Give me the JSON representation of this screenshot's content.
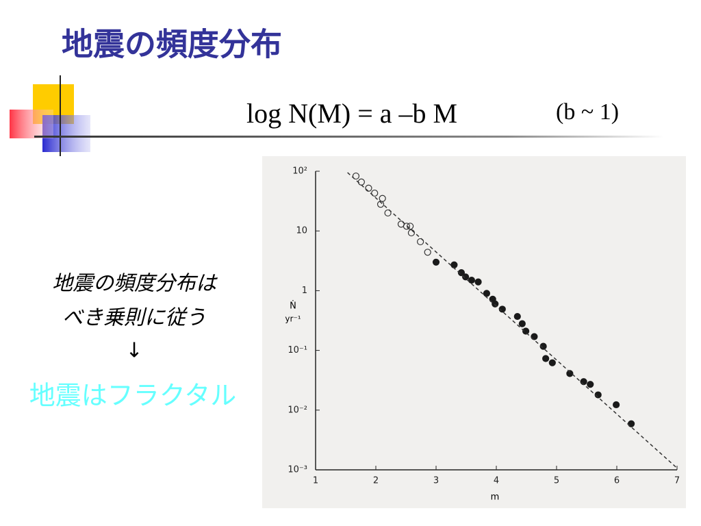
{
  "header": {
    "title": "地震の頻度分布",
    "formula": "log N(M) = a –b M",
    "note": "(b ~ 1)"
  },
  "body": {
    "lines": [
      "地震の頻度分布は",
      "べき乗則に従う",
      "↓"
    ],
    "conclusion": "地震はフラクタル"
  },
  "chart_data": {
    "type": "scatter",
    "log_y": true,
    "xlabel": "m",
    "ylabel": "Ṅ",
    "ylabel_unit": "yr⁻¹",
    "xlim": [
      1,
      7
    ],
    "xticks": [
      1,
      2,
      3,
      4,
      5,
      6,
      7
    ],
    "ylim": [
      0.001,
      100
    ],
    "yticks": [
      {
        "value": 100,
        "label": "10²"
      },
      10,
      1,
      {
        "value": 0.1,
        "label": "10⁻¹"
      },
      {
        "value": 0.01,
        "label": "10⁻²"
      },
      {
        "value": 0.001,
        "label": "10⁻³"
      }
    ],
    "series": [
      {
        "marker": "open",
        "color": "#333333",
        "x": [
          1.67,
          1.76,
          1.88,
          1.98,
          2.11,
          2.08,
          2.2,
          2.42,
          2.51,
          2.57,
          2.59,
          2.74,
          2.86
        ],
        "values": [
          83,
          66,
          52,
          43,
          35,
          28,
          20,
          13,
          12,
          12,
          9.3,
          6.6,
          4.4
        ]
      },
      {
        "marker": "filled",
        "color": "#1a1a1a",
        "x": [
          3.0,
          3.3,
          3.42,
          3.49,
          3.59,
          3.7,
          3.84,
          3.94,
          3.98,
          4.1,
          4.35,
          4.43,
          4.49,
          4.63,
          4.78,
          4.82,
          4.93,
          5.22,
          5.45,
          5.56,
          5.69,
          5.99,
          6.24
        ],
        "values": [
          3.0,
          2.7,
          2.0,
          1.7,
          1.5,
          1.4,
          0.9,
          0.72,
          0.6,
          0.49,
          0.37,
          0.28,
          0.21,
          0.17,
          0.117,
          0.073,
          0.062,
          0.041,
          0.03,
          0.027,
          0.018,
          0.0123,
          0.0059
        ]
      },
      {
        "line": "dashed",
        "color": "#333333",
        "x": [
          1.53,
          7
        ],
        "values": [
          95,
          0.00107
        ]
      }
    ]
  }
}
